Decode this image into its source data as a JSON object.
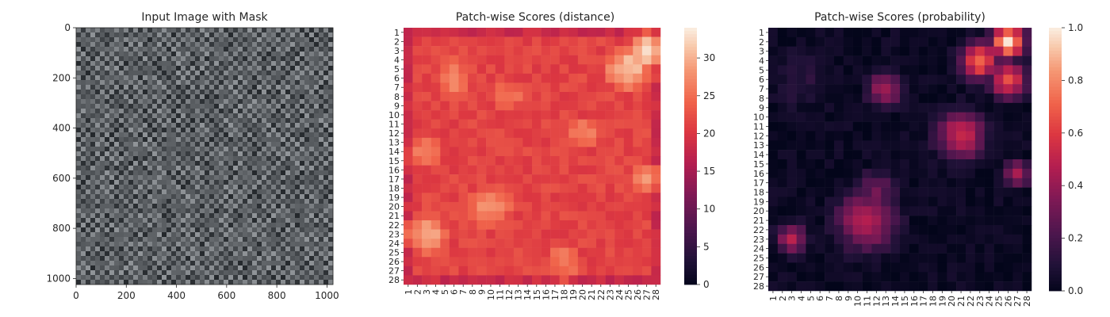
{
  "chart_data": [
    {
      "type": "image",
      "title": "Input Image with Mask",
      "xticks": [
        "0",
        "200",
        "400",
        "600",
        "800",
        "1000"
      ],
      "yticks": [
        "0",
        "200",
        "400",
        "600",
        "800",
        "1000"
      ],
      "xlim": [
        0,
        1024
      ],
      "ylim": [
        1024,
        0
      ]
    },
    {
      "type": "heatmap",
      "title": "Patch-wise Scores (distance)",
      "rows": 28,
      "cols": 28,
      "xticklabels": [
        "1",
        "2",
        "3",
        "4",
        "5",
        "6",
        "7",
        "8",
        "9",
        "10",
        "11",
        "12",
        "13",
        "14",
        "15",
        "16",
        "17",
        "18",
        "19",
        "20",
        "21",
        "22",
        "23",
        "24",
        "25",
        "26",
        "27",
        "28"
      ],
      "yticklabels": [
        "1",
        "2",
        "3",
        "4",
        "5",
        "6",
        "7",
        "8",
        "9",
        "10",
        "11",
        "12",
        "13",
        "14",
        "15",
        "16",
        "17",
        "18",
        "19",
        "20",
        "21",
        "22",
        "23",
        "24",
        "25",
        "26",
        "27",
        "28"
      ],
      "colorbar": {
        "min": 0,
        "max": 34,
        "ticks": [
          "0",
          "5",
          "10",
          "15",
          "20",
          "25",
          "30"
        ]
      },
      "colormap": "rocket",
      "features": [
        {
          "row": 3,
          "col": 27,
          "value": 34,
          "spread": 2.2
        },
        {
          "row": 5,
          "col": 25,
          "value": 31,
          "spread": 3.5
        },
        {
          "row": 23,
          "col": 3,
          "value": 30,
          "spread": 3.0
        },
        {
          "row": 17,
          "col": 27,
          "value": 28,
          "spread": 2.5
        },
        {
          "row": 20,
          "col": 10,
          "value": 28,
          "spread": 3.5
        },
        {
          "row": 6,
          "col": 6,
          "value": 27,
          "spread": 3.5
        },
        {
          "row": 12,
          "col": 20,
          "value": 27,
          "spread": 3.0
        },
        {
          "row": 14,
          "col": 3,
          "value": 27,
          "spread": 3.0
        },
        {
          "row": 26,
          "col": 18,
          "value": 27,
          "spread": 3.0
        },
        {
          "row": 8,
          "col": 12,
          "value": 26,
          "spread": 3.0
        }
      ]
    },
    {
      "type": "heatmap",
      "title": "Patch-wise Scores (probability)",
      "rows": 28,
      "cols": 28,
      "xticklabels": [
        "1",
        "2",
        "3",
        "4",
        "5",
        "6",
        "7",
        "8",
        "9",
        "10",
        "11",
        "12",
        "13",
        "14",
        "15",
        "16",
        "17",
        "18",
        "19",
        "20",
        "21",
        "22",
        "23",
        "24",
        "25",
        "26",
        "27",
        "28"
      ],
      "yticklabels": [
        "1",
        "2",
        "3",
        "4",
        "5",
        "6",
        "7",
        "8",
        "9",
        "10",
        "11",
        "12",
        "13",
        "14",
        "15",
        "16",
        "17",
        "18",
        "19",
        "20",
        "21",
        "22",
        "23",
        "24",
        "25",
        "26",
        "27",
        "28"
      ],
      "colorbar": {
        "min": 0,
        "max": 1.0,
        "ticks": [
          "0.0",
          "0.2",
          "0.4",
          "0.6",
          "0.8",
          "1.0"
        ]
      },
      "colormap": "rocket",
      "features": [
        {
          "row": 2,
          "col": 26,
          "value": 1.0,
          "spread": 1.2
        },
        {
          "row": 4,
          "col": 23,
          "value": 0.75,
          "spread": 1.4
        },
        {
          "row": 6,
          "col": 26,
          "value": 0.7,
          "spread": 1.3
        },
        {
          "row": 12,
          "col": 21,
          "value": 0.55,
          "spread": 1.8
        },
        {
          "row": 7,
          "col": 13,
          "value": 0.45,
          "spread": 1.3
        },
        {
          "row": 21,
          "col": 11,
          "value": 0.5,
          "spread": 2.2
        },
        {
          "row": 23,
          "col": 3,
          "value": 0.5,
          "spread": 1.1
        },
        {
          "row": 16,
          "col": 27,
          "value": 0.45,
          "spread": 1.0
        },
        {
          "row": 18,
          "col": 12,
          "value": 0.3,
          "spread": 1.6
        },
        {
          "row": 6,
          "col": 4,
          "value": 0.12,
          "spread": 2.5
        }
      ]
    }
  ]
}
